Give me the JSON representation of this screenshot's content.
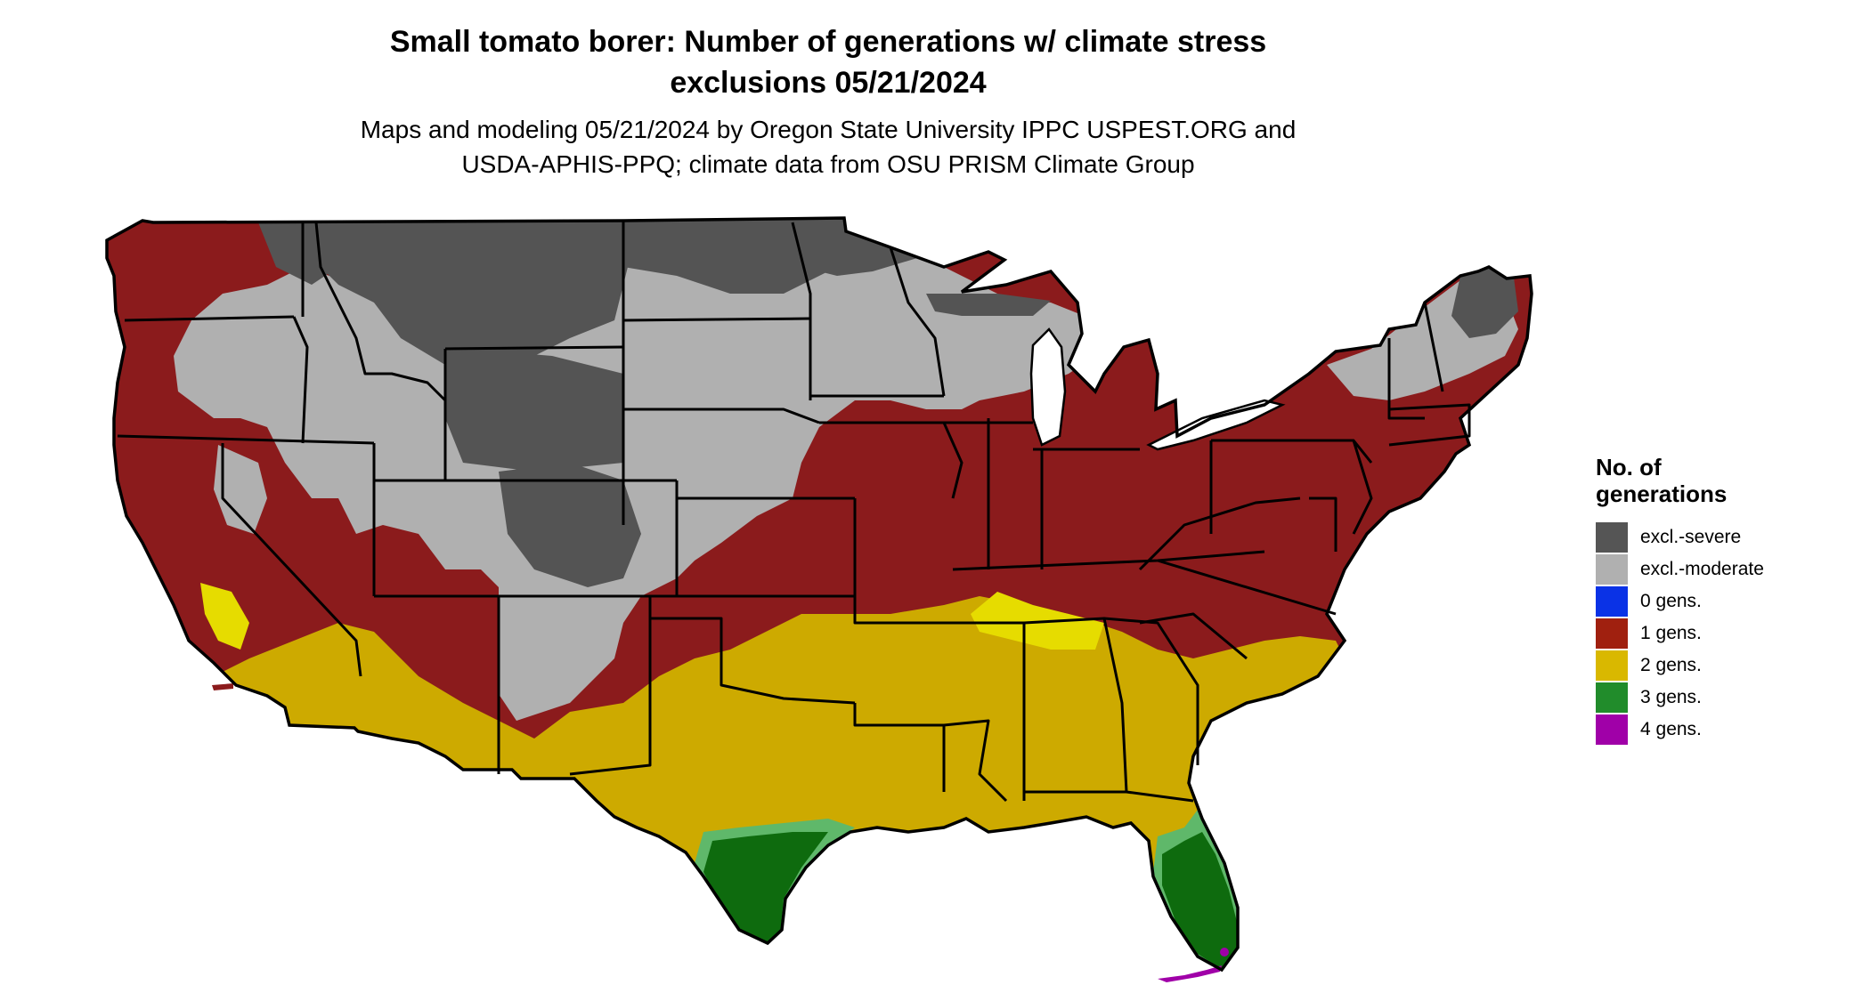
{
  "title": {
    "line1": "Small tomato borer: Number of generations w/ climate stress",
    "line2": "exclusions 05/21/2024"
  },
  "subtitle": {
    "line1": "Maps and modeling 05/21/2024 by Oregon State University IPPC USPEST.ORG and",
    "line2": "USDA-APHIS-PPQ; climate data from OSU PRISM Climate Group"
  },
  "legend": {
    "title_line1": "No. of",
    "title_line2": "generations",
    "items": [
      {
        "label": "excl.-severe",
        "color": "#555555"
      },
      {
        "label": "excl.-moderate",
        "color": "#b0b0b0"
      },
      {
        "label": "0 gens.",
        "color": "#0a32e6"
      },
      {
        "label": "1 gens.",
        "color": "#a0200f"
      },
      {
        "label": "2 gens.",
        "color": "#d9b800"
      },
      {
        "label": "3 gens.",
        "color": "#218c2b"
      },
      {
        "label": "4 gens.",
        "color": "#a000a8"
      }
    ]
  },
  "map_colors": {
    "excl_severe": "#545454",
    "excl_moderate": "#b0b0b0",
    "one_gen": "#8b1b1c",
    "two_gens": "#cdaa00",
    "two_gens_bright": "#e6dc00",
    "three_gens": "#0e6b0e",
    "three_gens_light": "#5fb86a",
    "four_gens": "#a000a8",
    "border": "#000000"
  }
}
